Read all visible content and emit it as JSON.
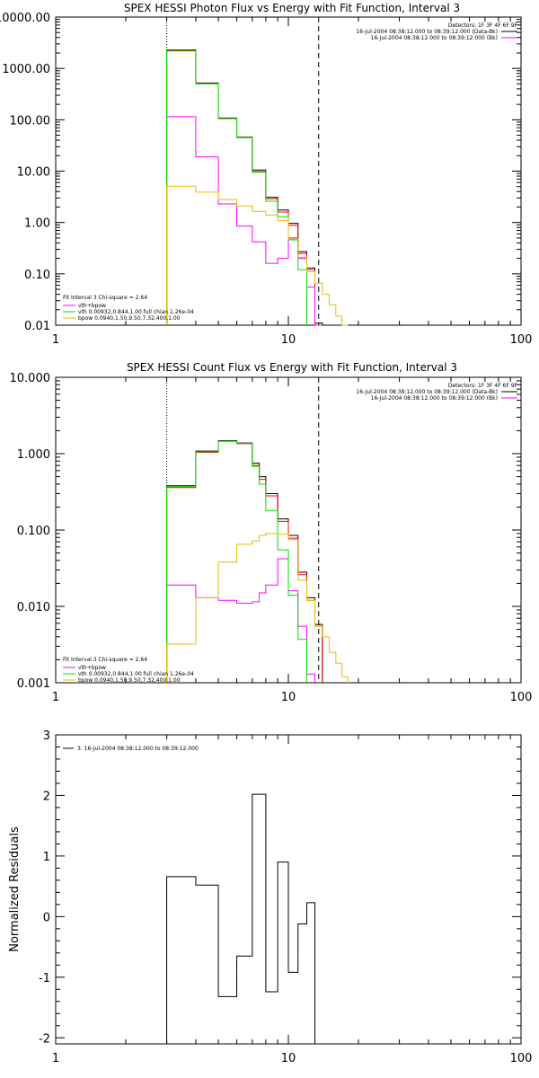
{
  "colors": {
    "data": "#000000",
    "bk": "#ff0000",
    "model": "#ff00ff",
    "vth": "#00e000",
    "bpow": "#e6bd00"
  },
  "chart_data": [
    {
      "type": "line",
      "title": "SPEX HESSI Photon Flux vs Energy with Fit Function, Interval 3",
      "xlabel": "",
      "ylabel": "",
      "xscale": "log",
      "yscale": "log",
      "xlim": [
        1,
        100
      ],
      "ylim": [
        0.01,
        10000
      ],
      "xticks": [
        1,
        10,
        100
      ],
      "xtick_labels": [
        "1",
        "10",
        "100"
      ],
      "yticks": [
        0.01,
        0.1,
        1,
        10,
        100,
        1000,
        10000
      ],
      "ytick_labels": [
        "0.01",
        "0.10",
        "1.00",
        "10.00",
        "100.00",
        "1000.00",
        "10000.00"
      ],
      "vlines": [
        {
          "x": 3,
          "style": "dotted"
        },
        {
          "x": 13.5,
          "style": "dashed"
        }
      ],
      "header": [
        "Detectors: 1F 3F 4F 6F 9F",
        "16-Jul-2004 08:38:12.000 to 08:39:12.000 (Data-Bk)",
        "16-Jul-2004 08:38:12.000 to 08:39:12.000 (Bk)"
      ],
      "fitinfo": [
        "Fit Interval 3   Chi-square = 2.64",
        "vth+bpow",
        "vth 0.00932,0.844,1.00  full chian 1.26e-04",
        "bpow 0.0940,1.50,9.50,7.32,400,1.00"
      ],
      "series": [
        {
          "color": "data",
          "edges": [
            3,
            4,
            5,
            6,
            7,
            8,
            9,
            10,
            11,
            12,
            13,
            14
          ],
          "values": [
            2300,
            520,
            108,
            46,
            10.5,
            3.1,
            1.75,
            0.96,
            0.27,
            0.13,
            0.011
          ]
        },
        {
          "color": "bk",
          "edges": [
            3,
            4,
            5,
            6,
            7,
            8,
            9,
            10,
            11,
            12,
            13,
            14
          ],
          "values": [
            2200,
            510,
            106,
            45,
            9.8,
            2.9,
            1.6,
            0.88,
            0.25,
            0.12,
            0.01
          ]
        },
        {
          "color": "model",
          "edges": [
            3,
            4,
            5,
            6,
            7,
            8,
            9,
            10,
            11,
            12,
            13,
            14
          ],
          "values": [
            115,
            19,
            2.3,
            0.85,
            0.42,
            0.16,
            0.2,
            0.5,
            0.2,
            0.055,
            0.01
          ]
        },
        {
          "color": "vth",
          "edges": [
            3,
            4,
            5,
            6,
            7,
            8,
            9,
            10,
            11,
            12
          ],
          "values": [
            2250,
            500,
            105,
            45,
            9.5,
            2.6,
            1.3,
            0.46,
            0.12
          ]
        },
        {
          "color": "bpow",
          "edges": [
            3,
            4,
            5,
            6,
            7,
            8,
            9,
            10,
            11,
            12,
            13,
            14,
            15,
            16,
            17,
            18
          ],
          "values": [
            5.1,
            3.9,
            2.8,
            2.1,
            1.65,
            1.4,
            1.1,
            0.48,
            0.21,
            0.11,
            0.065,
            0.04,
            0.025,
            0.015,
            0.01
          ]
        }
      ]
    },
    {
      "type": "line",
      "title": "SPEX HESSI Count Flux vs Energy with Fit Function, Interval 3",
      "xlabel": "",
      "ylabel": "",
      "xscale": "log",
      "yscale": "log",
      "xlim": [
        1,
        100
      ],
      "ylim": [
        0.001,
        10
      ],
      "xticks": [
        1,
        10,
        100
      ],
      "xtick_labels": [
        "1",
        "10",
        "100"
      ],
      "yticks": [
        0.001,
        0.01,
        0.1,
        1,
        10
      ],
      "ytick_labels": [
        "0.001",
        "0.010",
        "0.100",
        "1.000",
        "10.000"
      ],
      "vlines": [
        {
          "x": 3,
          "style": "dotted"
        },
        {
          "x": 13.5,
          "style": "dashed"
        }
      ],
      "header": [
        "Detectors: 1F 3F 4F 6F 9F",
        "16-Jul-2004 08:38:12.000 to 08:39:12.000 (Data-Bk)",
        "16-Jul-2004 08:38:12.000 to 08:39:12.000 (Bk)"
      ],
      "fitinfo": [
        "Fit Interval 3   Chi-square = 2.64",
        "vth+bpow",
        "vth 0.00932,0.844,1.00  full chian 1.26e-04",
        "bpow 0.0940,1.50,9.50,7.32,400,1.00"
      ],
      "series": [
        {
          "color": "data",
          "edges": [
            3,
            4,
            5,
            6,
            7,
            7.5,
            8,
            9,
            10,
            11,
            12,
            13,
            14
          ],
          "values": [
            0.38,
            1.08,
            1.48,
            1.38,
            0.75,
            0.5,
            0.3,
            0.14,
            0.085,
            0.028,
            0.013,
            0.0058
          ]
        },
        {
          "color": "bk",
          "edges": [
            3,
            4,
            5,
            6,
            7,
            7.5,
            8,
            9,
            10,
            11,
            12,
            13,
            14
          ],
          "values": [
            0.36,
            1.04,
            1.45,
            1.35,
            0.7,
            0.46,
            0.28,
            0.13,
            0.078,
            0.026,
            0.012,
            0.0055
          ]
        },
        {
          "color": "model",
          "edges": [
            3,
            4,
            5,
            6,
            7,
            7.5,
            8,
            9,
            10,
            11,
            12,
            13
          ],
          "values": [
            0.019,
            0.013,
            0.012,
            0.011,
            0.0115,
            0.015,
            0.019,
            0.042,
            0.016,
            0.0055,
            0.0013
          ]
        },
        {
          "color": "vth",
          "edges": [
            3,
            4,
            5,
            6,
            7,
            7.5,
            8,
            9,
            10,
            11,
            12
          ],
          "values": [
            0.37,
            1.06,
            1.46,
            1.36,
            0.68,
            0.4,
            0.18,
            0.055,
            0.014,
            0.0037
          ]
        },
        {
          "color": "bpow",
          "edges": [
            3,
            4,
            5,
            6,
            7,
            7.5,
            8,
            9,
            10,
            11,
            12,
            13,
            14,
            15,
            16,
            17,
            18
          ],
          "values": [
            0.0032,
            0.013,
            0.038,
            0.065,
            0.072,
            0.085,
            0.09,
            0.088,
            0.075,
            0.022,
            0.012,
            0.0055,
            0.004,
            0.0025,
            0.0018,
            0.0012
          ]
        }
      ]
    },
    {
      "type": "line",
      "title": "",
      "xlabel": "",
      "ylabel": "Normalized Residuals",
      "xscale": "log",
      "yscale": "linear",
      "xlim": [
        1,
        100
      ],
      "ylim": [
        -2.1,
        3
      ],
      "xticks": [
        1,
        10,
        100
      ],
      "xtick_labels": [
        "1",
        "10",
        "100"
      ],
      "yticks": [
        -2,
        -1,
        0,
        1,
        2,
        3
      ],
      "ytick_labels": [
        "-2",
        "-1",
        "0",
        "1",
        "2",
        "3"
      ],
      "vlines": [],
      "legend": [
        "3. 16-Jul-2004 08:38:12.000 to 08:39:12.000"
      ],
      "series": [
        {
          "color": "data",
          "edges": [
            3,
            4,
            5,
            6,
            7,
            8,
            9,
            10,
            11,
            12,
            13
          ],
          "values": [
            0.66,
            0.52,
            -1.32,
            -0.65,
            2.02,
            -1.24,
            0.9,
            -0.92,
            -0.12,
            0.23
          ],
          "closed": true
        }
      ]
    }
  ]
}
